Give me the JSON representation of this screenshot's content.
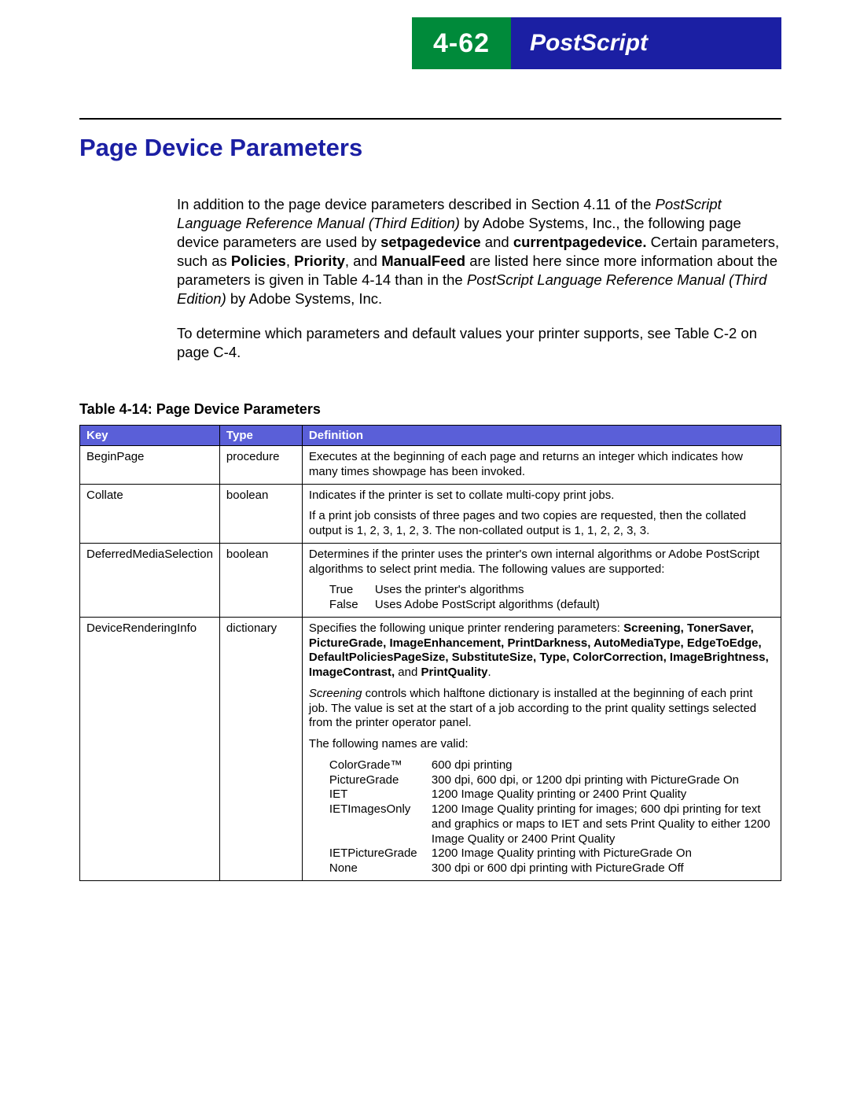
{
  "header": {
    "page_number": "4-62",
    "section": "PostScript",
    "green_bg": "#008a3a",
    "blue_bg": "#1b1fa3"
  },
  "title": "Page Device Parameters",
  "body": {
    "p1_a": "In addition to the page device parameters described in Section 4.11 of the ",
    "p1_i1": "PostScript Language Reference Manual (Third Edition)",
    "p1_b": " by Adobe Systems, Inc., the following page device parameters are used by ",
    "p1_bold1": "setpagedevice",
    "p1_c": " and ",
    "p1_bold2": "currentpagedevice.",
    "p1_d": " Certain parameters, such as ",
    "p1_bold3": "Policies",
    "p1_e": ", ",
    "p1_bold4": "Priority",
    "p1_f": ", and ",
    "p1_bold5": "ManualFeed",
    "p1_g": " are listed here since more information about the parameters is given in Table 4-14 than in the ",
    "p1_i2": "PostScript Language Reference Manual (Third Edition)",
    "p1_h": " by Adobe Systems, Inc.",
    "p2": "To determine which parameters and default values your printer supports, see Table C-2 on page C-4."
  },
  "table": {
    "caption": "Table 4-14:  Page Device Parameters",
    "header_bg": "#5a5fd8",
    "columns": {
      "key": "Key",
      "type": "Type",
      "def": "Definition"
    },
    "rows": {
      "r1": {
        "key": "BeginPage",
        "type": "procedure",
        "def": "Executes at the beginning of each page and returns an integer which indicates how many times showpage has been invoked."
      },
      "r2": {
        "key": "Collate",
        "type": "boolean",
        "def1": "Indicates if the printer is set to collate multi-copy print jobs.",
        "def2": "If a print job consists of three pages and two copies are requested, then the collated output is 1, 2, 3, 1, 2, 3. The non-collated output is 1, 1, 2, 2, 3, 3."
      },
      "r3": {
        "key": "DeferredMediaSelection",
        "type": "boolean",
        "def1": "Determines if the printer uses the printer's own internal algorithms or Adobe PostScript algorithms to select print media. The following values are supported:",
        "kv": {
          "k1": "True",
          "v1": "Uses the printer's algorithms",
          "k2": "False",
          "v2": "Uses Adobe PostScript algorithms (default)"
        }
      },
      "r4": {
        "key": "DeviceRenderingInfo",
        "type": "dictionary",
        "def1_a": "Specifies the following unique printer rendering parameters: ",
        "def1_bolds": "Screening, TonerSaver, PictureGrade, ImageEnhancement, PrintDarkness, AutoMediaType, EdgeToEdge, DefaultPoliciesPageSize, SubstituteSize, Type, ColorCorrection, ImageBrightness, ImageContrast,",
        "def1_b": " and ",
        "def1_bold_last": "PrintQuality",
        "def1_c": ".",
        "def2_i": "Screening",
        "def2_rest": " controls which halftone dictionary is installed at the beginning of each print job. The value is set at the start of a job according to the print quality settings selected from the printer operator panel.",
        "def3": "The following names are valid:",
        "kv": {
          "k1": "ColorGrade™",
          "v1": "600 dpi printing",
          "k2": "PictureGrade",
          "v2": "300 dpi, 600 dpi, or 1200 dpi printing with PictureGrade On",
          "k3": "IET",
          "v3": "1200 Image Quality printing or 2400 Print Quality",
          "k4": "IETImagesOnly",
          "v4": "1200 Image Quality printing for images; 600 dpi printing for text and graphics or maps to IET and sets Print Quality to either 1200 Image Quality or 2400 Print Quality",
          "k5": "IETPictureGrade",
          "v5": "1200 Image Quality printing with PictureGrade On",
          "k6": "None",
          "v6": "300 dpi or 600 dpi printing with PictureGrade Off"
        }
      }
    }
  }
}
